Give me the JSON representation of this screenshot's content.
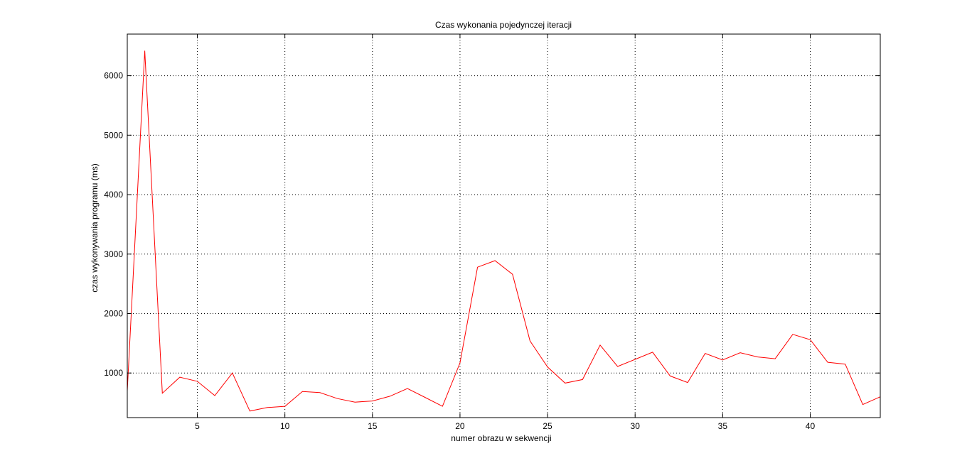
{
  "chart_data": {
    "type": "line",
    "title": "Czas wykonania pojedynczej iteracji",
    "xlabel": "numer obrazu w sekwencji",
    "ylabel": "czas wykonywania programu (ms)",
    "xlim": [
      1,
      44
    ],
    "ylim": [
      250,
      6700
    ],
    "xticks": [
      5,
      10,
      15,
      20,
      25,
      30,
      35,
      40
    ],
    "yticks": [
      1000,
      2000,
      3000,
      4000,
      5000,
      6000
    ],
    "grid": true,
    "line_color": "#ff0000",
    "series": [
      {
        "x": [
          1,
          2,
          3,
          4,
          5,
          6,
          7,
          8,
          9,
          10,
          11,
          12,
          13,
          14,
          15,
          16,
          17,
          18,
          19,
          20,
          21,
          22,
          23,
          24,
          25,
          26,
          27,
          28,
          29,
          30,
          31,
          32,
          33,
          34,
          35,
          36,
          37,
          38,
          39,
          40,
          41,
          42,
          43,
          44
        ],
        "values": [
          700,
          6420,
          660,
          930,
          860,
          620,
          1000,
          360,
          420,
          440,
          690,
          670,
          570,
          510,
          530,
          610,
          740,
          590,
          440,
          1170,
          2780,
          2890,
          2660,
          1540,
          1100,
          830,
          890,
          1470,
          1110,
          1230,
          1350,
          950,
          840,
          1330,
          1220,
          1340,
          1270,
          1240,
          1650,
          1560,
          1180,
          1150,
          470,
          600
        ]
      }
    ]
  }
}
